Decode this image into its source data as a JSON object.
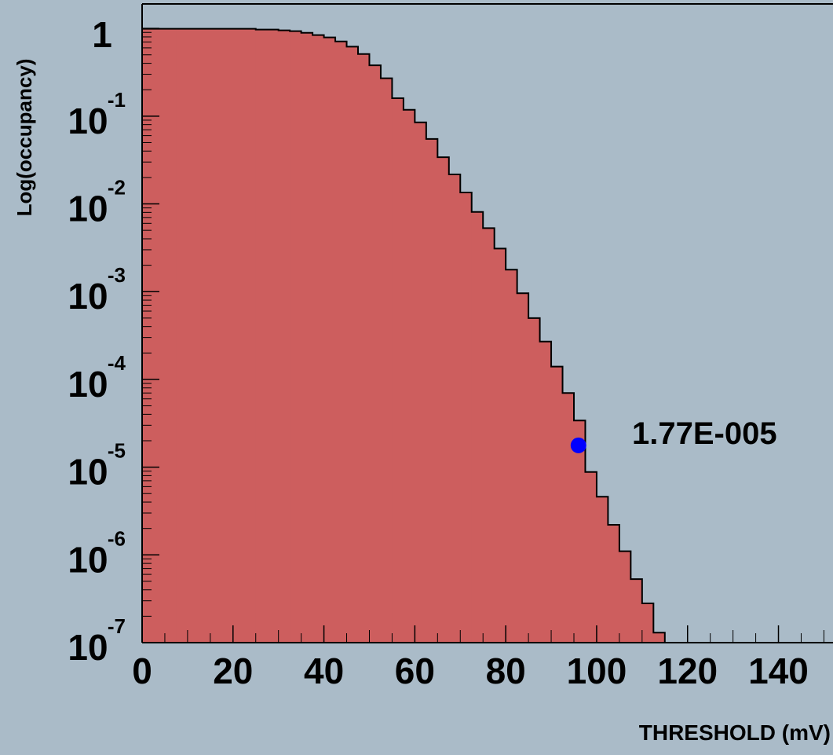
{
  "chart_data": {
    "type": "histogram",
    "log_y": true,
    "y_label": "Log(occupancy)",
    "x_label": "THRESHOLD (mV)",
    "color": "#cd5e5e",
    "background": "#aabbc8",
    "bins": [
      0,
      2.5,
      5,
      7.5,
      10,
      12.5,
      15,
      17.5,
      20,
      22.5,
      25,
      27.5,
      30,
      32.5,
      35,
      37.5,
      40,
      42.5,
      45,
      47.5,
      50,
      52.5,
      55,
      57.5,
      60,
      62.5,
      65,
      67.5,
      70,
      72.5,
      75,
      77.5,
      80,
      82.5,
      85,
      87.5,
      90,
      92.5,
      95,
      97.5,
      100,
      102.5,
      105,
      107.5,
      110,
      112.5,
      115
    ],
    "values": [
      0.99,
      0.99,
      0.99,
      0.99,
      0.99,
      0.99,
      0.99,
      0.99,
      0.99,
      0.99,
      0.97,
      0.97,
      0.95,
      0.93,
      0.89,
      0.84,
      0.79,
      0.71,
      0.62,
      0.51,
      0.38,
      0.27,
      0.16,
      0.118,
      0.085,
      0.055,
      0.034,
      0.0217,
      0.0135,
      0.0081,
      0.0053,
      0.0031,
      0.00178,
      0.00096,
      0.0005,
      0.00027,
      0.00014,
      7e-05,
      3.4e-05,
      8.8e-06,
      4.6e-06,
      2.2e-06,
      1.1e-06,
      5.3e-07,
      2.8e-07,
      1.3e-07
    ],
    "xlim": [
      0,
      152
    ],
    "ylim": [
      1e-07,
      1.9
    ],
    "xticks": [
      0,
      20,
      40,
      60,
      80,
      100,
      120,
      140
    ],
    "yticks": [
      {
        "value": 1e-07,
        "label": "10",
        "sup": "-7"
      },
      {
        "value": 1e-06,
        "label": "10",
        "sup": "-6"
      },
      {
        "value": 1e-05,
        "label": "10",
        "sup": "-5"
      },
      {
        "value": 0.0001,
        "label": "10",
        "sup": "-4"
      },
      {
        "value": 0.001,
        "label": "10",
        "sup": "-3"
      },
      {
        "value": 0.01,
        "label": "10",
        "sup": "-2"
      },
      {
        "value": 0.1,
        "label": "10",
        "sup": "-1"
      },
      1
    ],
    "marker": {
      "x": 96,
      "y": 1.77e-05,
      "label": "1.77E-005",
      "color": "#0000ff"
    }
  }
}
